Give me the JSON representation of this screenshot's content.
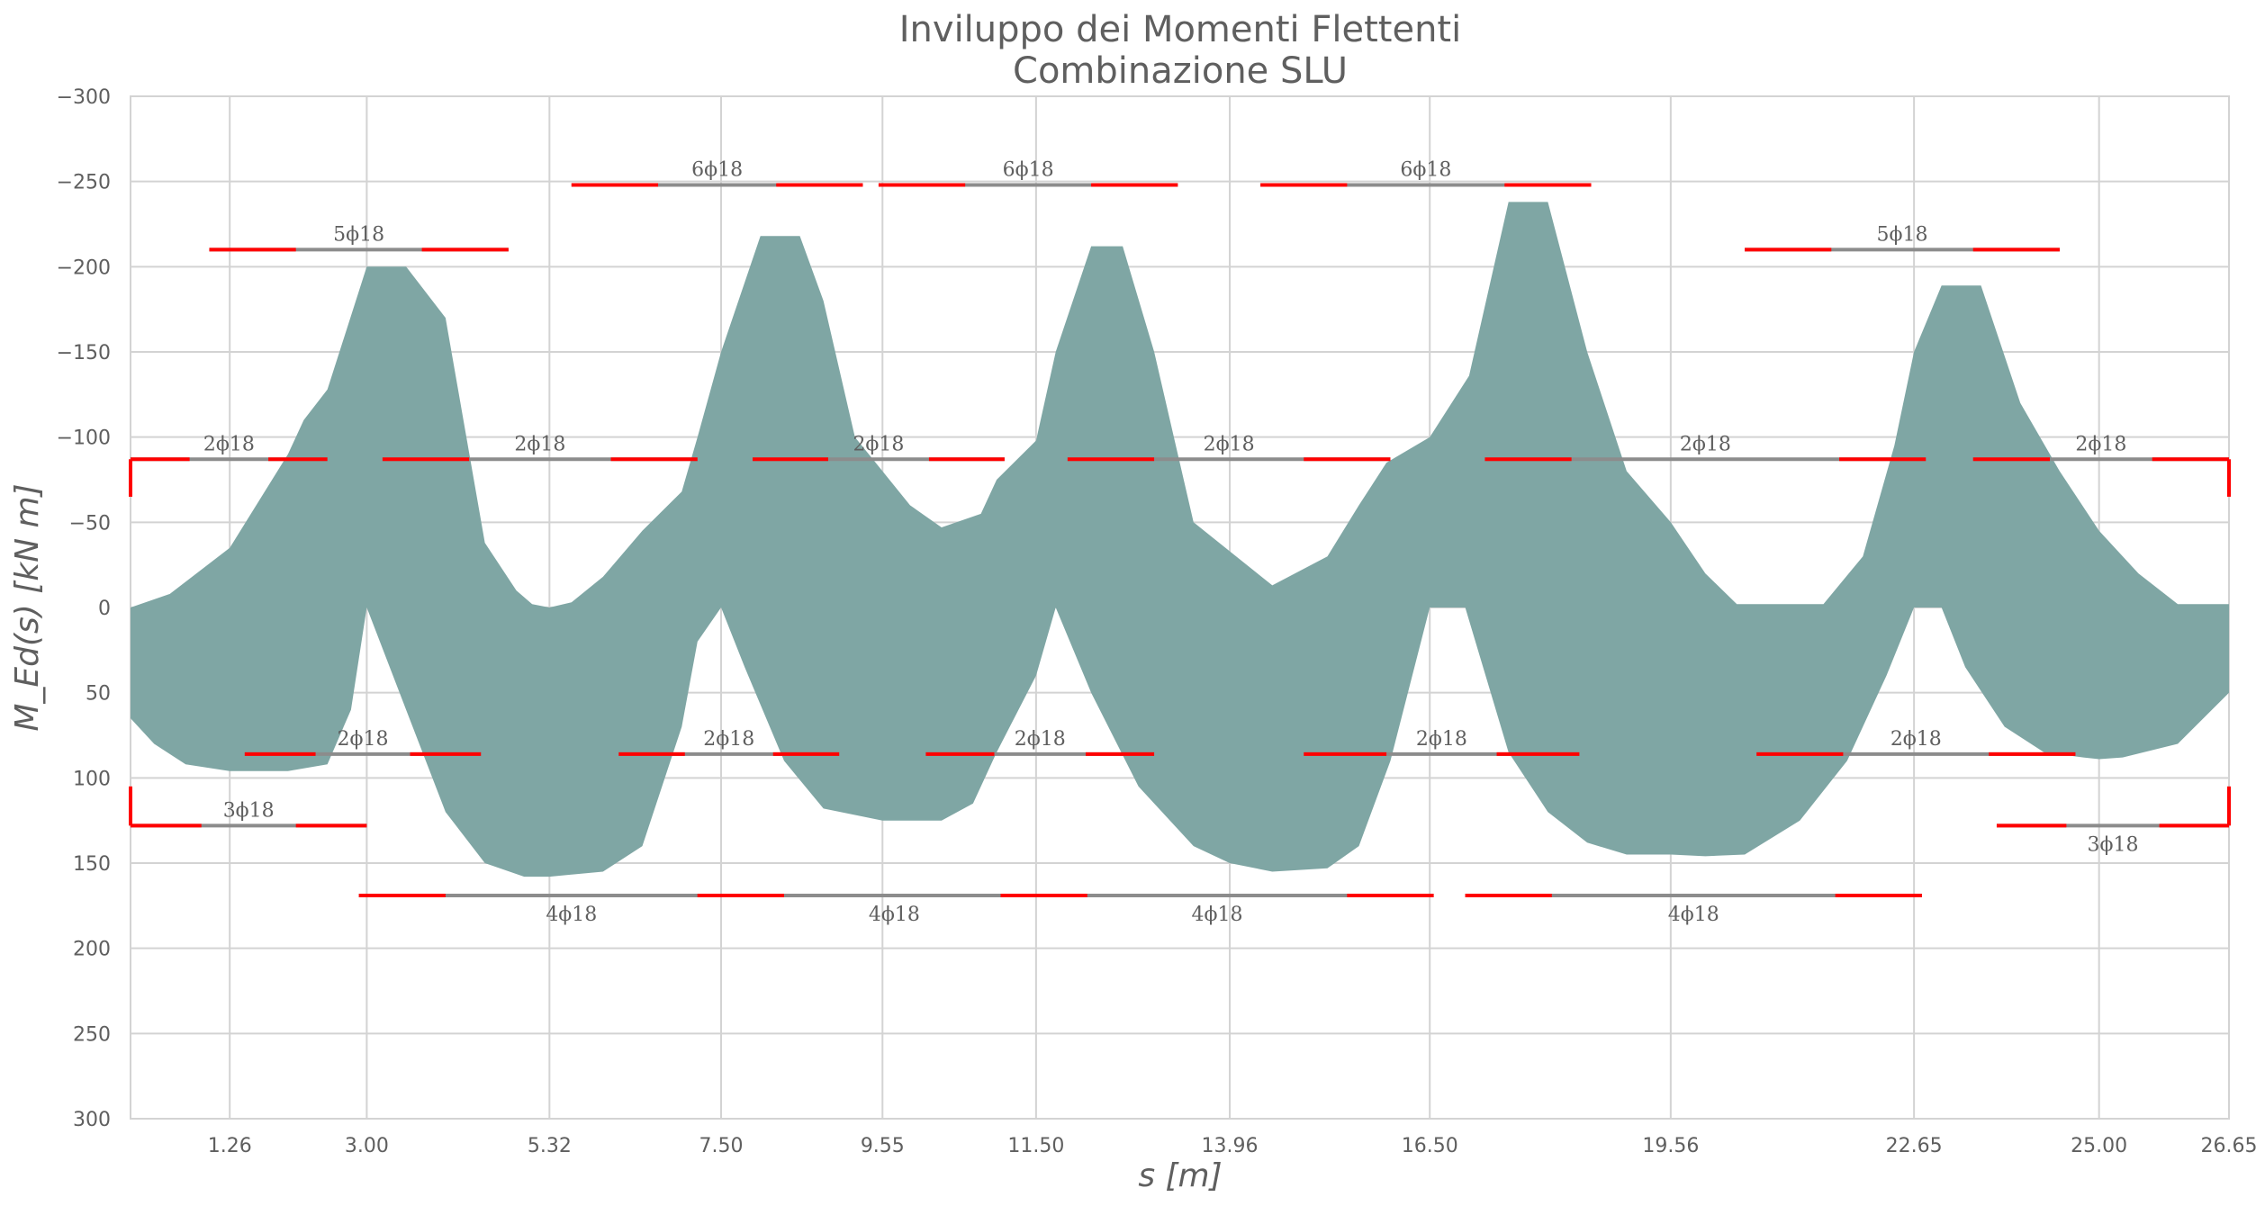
{
  "chart_data": {
    "type": "area",
    "title": "Inviluppo dei Momenti Flettenti",
    "subtitle": "Combinazione SLU",
    "xlabel": "s [m]",
    "ylabel": "M_Ed(s) [kN m]",
    "xlim": [
      0,
      26.65
    ],
    "ylim": [
      -300,
      300
    ],
    "y_inverted": true,
    "grid": true,
    "x_ticks": [
      1.26,
      3.0,
      5.32,
      7.5,
      9.55,
      11.5,
      13.96,
      16.5,
      19.56,
      22.65,
      25.0,
      26.65
    ],
    "x_tick_labels": [
      "1.26",
      "3.00",
      "5.32",
      "7.50",
      "9.55",
      "11.50",
      "13.96",
      "16.50",
      "19.56",
      "22.65",
      "25.00",
      "26.65"
    ],
    "y_ticks": [
      -300,
      -250,
      -200,
      -150,
      -100,
      -50,
      0,
      50,
      100,
      150,
      200,
      250,
      300
    ],
    "y_tick_labels": [
      "−300",
      "−250",
      "−200",
      "−150",
      "−100",
      "−50",
      "0",
      "50",
      "100",
      "150",
      "200",
      "250",
      "300"
    ],
    "colors": {
      "envelope": "#7fa6a4",
      "rebar": "#8c8c8c",
      "anchorage": "#ff0000",
      "grid": "#d3d3d3",
      "text": "#5f5f5f"
    },
    "series": [
      {
        "role": "envelope_upper_negative_moment",
        "x": [
          0,
          0.5,
          1.26,
          2.0,
          2.2,
          2.5,
          3.0,
          3.5,
          4.0,
          4.5,
          4.9,
          5.1,
          5.32,
          5.6,
          6.0,
          6.5,
          7.0,
          7.2,
          7.5,
          8.0,
          8.5,
          8.8,
          9.2,
          9.55,
          9.9,
          10.3,
          10.8,
          11.0,
          11.5,
          11.75,
          12.2,
          12.6,
          13.0,
          13.5,
          13.96,
          14.5,
          15.2,
          15.6,
          15.95,
          16.5,
          17.0,
          17.5,
          18.0,
          18.5,
          19.0,
          19.56,
          20.0,
          20.4,
          21.0,
          21.5,
          22.0,
          22.4,
          22.65,
          23.0,
          23.5,
          24.0,
          24.5,
          25.0,
          25.5,
          26.0,
          26.65
        ],
        "y": [
          0,
          -8,
          -35,
          -90,
          -110,
          -128,
          -200,
          -200,
          -170,
          -38,
          -10,
          -2,
          0,
          -3,
          -18,
          -45,
          -68,
          -100,
          -150,
          -218,
          -218,
          -180,
          -100,
          -80,
          -60,
          -47,
          -55,
          -75,
          -98,
          -150,
          -212,
          -212,
          -150,
          -50,
          -33,
          -13,
          -30,
          -60,
          -85,
          -100,
          -136,
          -238,
          -238,
          -150,
          -80,
          -50,
          -20,
          -2,
          -2,
          -2,
          -30,
          -95,
          -150,
          -189,
          -189,
          -120,
          -80,
          -45,
          -20,
          -2,
          -2
        ]
      },
      {
        "role": "envelope_lower_positive_moment",
        "x": [
          0,
          0.3,
          0.7,
          1.26,
          2.0,
          2.5,
          2.8,
          3.0,
          3.5,
          4.0,
          4.5,
          5.0,
          5.32,
          6.0,
          6.5,
          7.0,
          7.2,
          7.5,
          7.8,
          8.3,
          8.8,
          9.55,
          10.3,
          10.7,
          11.0,
          11.5,
          11.75,
          12.2,
          12.8,
          13.5,
          13.96,
          14.5,
          15.2,
          15.6,
          16.0,
          16.5,
          16.95,
          17.5,
          18.0,
          18.5,
          19.0,
          19.56,
          20.0,
          20.5,
          21.2,
          21.8,
          22.3,
          22.65,
          23.0,
          23.3,
          23.8,
          24.3,
          24.8,
          25.0,
          25.3,
          26.0,
          26.65
        ],
        "y": [
          65,
          80,
          92,
          96,
          96,
          92,
          60,
          0,
          60,
          120,
          150,
          158,
          158,
          155,
          140,
          70,
          20,
          0,
          35,
          90,
          118,
          125,
          125,
          115,
          85,
          40,
          0,
          50,
          105,
          140,
          150,
          155,
          153,
          140,
          90,
          0,
          0,
          85,
          120,
          138,
          145,
          145,
          146,
          145,
          125,
          90,
          40,
          0,
          0,
          35,
          70,
          85,
          88,
          89,
          88,
          80,
          50
        ]
      }
    ],
    "rebars": [
      {
        "x": [
          1.0,
          4.8
        ],
        "y": -210,
        "label": "5ϕ18",
        "label_side": "above"
      },
      {
        "x": [
          5.6,
          9.3
        ],
        "y": -248,
        "label": "6ϕ18",
        "label_side": "above"
      },
      {
        "x": [
          9.5,
          13.3
        ],
        "y": -248,
        "label": "6ϕ18",
        "label_side": "above"
      },
      {
        "x": [
          14.35,
          18.55
        ],
        "y": -248,
        "label": "6ϕ18",
        "label_side": "above"
      },
      {
        "x": [
          20.5,
          24.5
        ],
        "y": -210,
        "label": "5ϕ18",
        "label_side": "above"
      },
      {
        "x": [
          0,
          2.5
        ],
        "y": -87,
        "label": "2ϕ18",
        "label_side": "above"
      },
      {
        "x": [
          3.2,
          7.2
        ],
        "y": -87,
        "label": "2ϕ18",
        "label_side": "above"
      },
      {
        "x": [
          7.9,
          11.1
        ],
        "y": -87,
        "label": "2ϕ18",
        "label_side": "above"
      },
      {
        "x": [
          11.9,
          16.0
        ],
        "y": -87,
        "label": "2ϕ18",
        "label_side": "above"
      },
      {
        "x": [
          17.2,
          22.8
        ],
        "y": -87,
        "label": "2ϕ18",
        "label_side": "above"
      },
      {
        "x": [
          23.4,
          26.65
        ],
        "y": -87,
        "label": "2ϕ18",
        "label_side": "above"
      },
      {
        "x": [
          1.45,
          4.45
        ],
        "y": 86,
        "label": "2ϕ18",
        "label_side": "above"
      },
      {
        "x": [
          6.2,
          9.0
        ],
        "y": 86,
        "label": "2ϕ18",
        "label_side": "above"
      },
      {
        "x": [
          10.1,
          13.0
        ],
        "y": 86,
        "label": "2ϕ18",
        "label_side": "above"
      },
      {
        "x": [
          14.9,
          18.4
        ],
        "y": 86,
        "label": "2ϕ18",
        "label_side": "above"
      },
      {
        "x": [
          20.65,
          24.7
        ],
        "y": 86,
        "label": "2ϕ18",
        "label_side": "above"
      },
      {
        "x": [
          0,
          3.0
        ],
        "y": 128,
        "label": "3ϕ18",
        "label_side": "above"
      },
      {
        "x": [
          23.7,
          26.65
        ],
        "y": 128,
        "label": "3ϕ18",
        "label_side": "below"
      },
      {
        "x": [
          2.9,
          8.3
        ],
        "y": 169,
        "label": "4ϕ18",
        "label_side": "below"
      },
      {
        "x": [
          7.2,
          12.2
        ],
        "y": 169,
        "label": "4ϕ18",
        "label_side": "below"
      },
      {
        "x": [
          11.05,
          16.55
        ],
        "y": 169,
        "label": "4ϕ18",
        "label_side": "below"
      },
      {
        "x": [
          16.95,
          22.75
        ],
        "y": 169,
        "label": "4ϕ18",
        "label_side": "below"
      }
    ],
    "end_hooks": [
      {
        "x": 0,
        "y1": -87,
        "y2": -65
      },
      {
        "x": 26.65,
        "y1": -87,
        "y2": -65
      },
      {
        "x": 0,
        "y1": 128,
        "y2": 105
      },
      {
        "x": 26.65,
        "y1": 128,
        "y2": 105
      }
    ]
  }
}
